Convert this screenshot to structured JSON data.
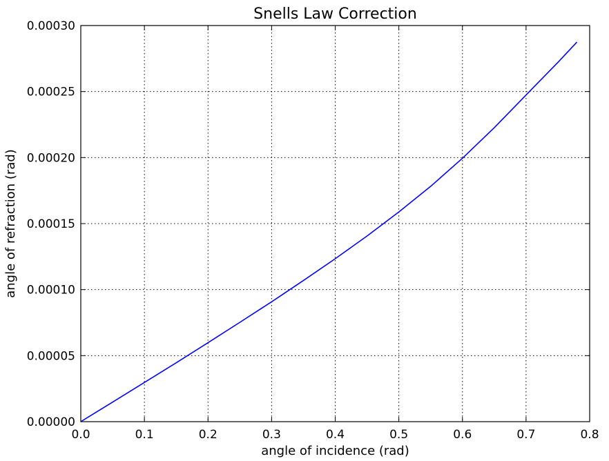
{
  "chart_data": {
    "type": "line",
    "title": "Snells Law Correction",
    "xlabel": "angle of incidence (rad)",
    "ylabel": "angle of refraction (rad)",
    "xlim": [
      0.0,
      0.8
    ],
    "ylim": [
      0.0,
      0.0003
    ],
    "xticks": [
      0.0,
      0.1,
      0.2,
      0.3,
      0.4,
      0.5,
      0.6,
      0.7,
      0.8
    ],
    "xtick_labels": [
      "0.0",
      "0.1",
      "0.2",
      "0.3",
      "0.4",
      "0.5",
      "0.6",
      "0.7",
      "0.8"
    ],
    "yticks": [
      0.0,
      5e-05,
      0.0001,
      0.00015,
      0.0002,
      0.00025,
      0.0003
    ],
    "ytick_labels": [
      "0.00000",
      "0.00005",
      "0.00010",
      "0.00015",
      "0.00020",
      "0.00025",
      "0.00030"
    ],
    "grid": true,
    "series": [
      {
        "color": "#0000ff",
        "x": [
          0.0,
          0.05,
          0.1,
          0.15,
          0.2,
          0.25,
          0.3,
          0.35,
          0.4,
          0.45,
          0.5,
          0.55,
          0.6,
          0.65,
          0.7,
          0.75,
          0.78
        ],
        "y": [
          0.0,
          1.48e-05,
          2.97e-05,
          4.46e-05,
          5.98e-05,
          7.52e-05,
          9.08e-05,
          0.0001069,
          0.0001234,
          0.0001406,
          0.0001588,
          0.0001782,
          0.0001995,
          0.0002226,
          0.0002474,
          0.0002721,
          0.0002875
        ]
      }
    ]
  }
}
